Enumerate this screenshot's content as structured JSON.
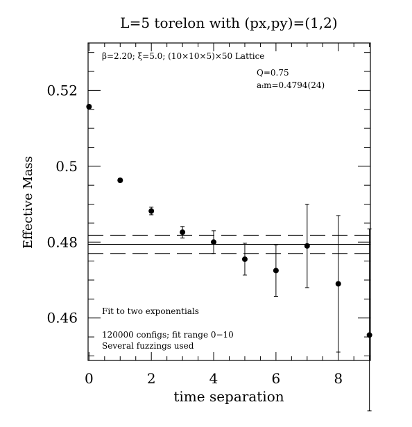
{
  "chart_data": {
    "type": "scatter",
    "title": "L=5 torelon with (px,py)=(1,2)",
    "xlabel": "time separation",
    "ylabel": "Effective Mass",
    "xlim": [
      -0.03,
      9.03
    ],
    "ylim": [
      0.4488,
      0.5325
    ],
    "x_ticks": [
      0,
      2,
      4,
      6,
      8
    ],
    "x_tick_labels": [
      "0",
      "2",
      "4",
      "6",
      "8"
    ],
    "y_ticks": [
      0.46,
      0.48,
      0.5,
      0.52
    ],
    "y_tick_labels": [
      "0.46",
      "0.48",
      "0.5",
      "0.52"
    ],
    "grid": false,
    "annotations": {
      "lattice": "β=2.20; ξ=5.0; (10×10×5)×50 Lattice",
      "q": "Q=0.75",
      "mass": "aₜm=0.4794(24)",
      "fit": "Fit to two exponentials",
      "configs": "120000 configs; fit range 0−10",
      "fuzzings": "Several fuzzings used"
    },
    "fit": {
      "value": 0.4794,
      "error": 0.0024
    },
    "series": [
      {
        "x": [
          0,
          1,
          2,
          3,
          4,
          5,
          6,
          7,
          8,
          9
        ],
        "y": [
          0.5157,
          0.4963,
          0.4882,
          0.4826,
          0.48,
          0.4755,
          0.4725,
          0.479,
          0.469,
          0.4555
        ],
        "err_low": [
          0.0005,
          0.0005,
          0.001,
          0.0015,
          0.003,
          0.0042,
          0.0068,
          0.011,
          0.018,
          0.02
        ],
        "err_high": [
          0.0005,
          0.0005,
          0.001,
          0.0015,
          0.003,
          0.0042,
          0.0068,
          0.011,
          0.018,
          0.028
        ]
      }
    ]
  }
}
